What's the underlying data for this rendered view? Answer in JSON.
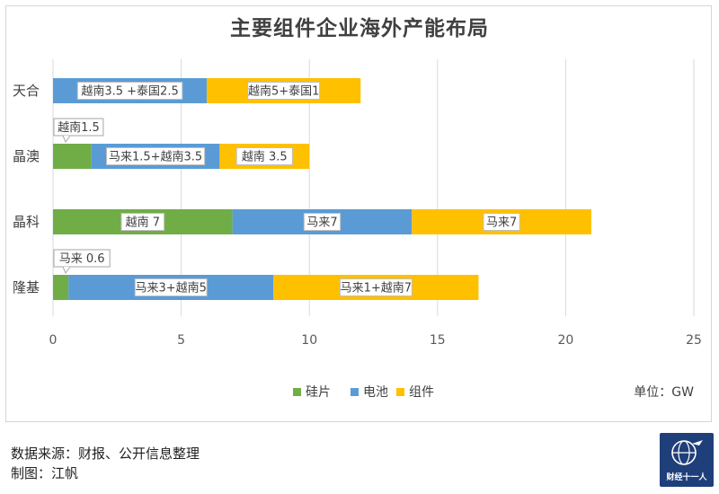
{
  "chart_data": {
    "type": "bar",
    "orientation": "horizontal",
    "stacked": true,
    "title": "主要组件企业海外产能布局",
    "unit_label": "单位：GW",
    "categories": [
      "天合",
      "晶澳",
      "晶科",
      "隆基"
    ],
    "series": [
      {
        "name": "硅片",
        "color": "#70ad47",
        "values": [
          0,
          1.5,
          7,
          0.6
        ]
      },
      {
        "name": "电池",
        "color": "#5b9bd5",
        "values": [
          6,
          5,
          7,
          8
        ]
      },
      {
        "name": "组件",
        "color": "#ffc000",
        "values": [
          6,
          3.5,
          7,
          8
        ]
      }
    ],
    "annotations": [
      {
        "category": "天合",
        "series": "电池",
        "text": "越南3.5 +泰国2.5"
      },
      {
        "category": "天合",
        "series": "组件",
        "text": "越南5+泰国1"
      },
      {
        "category": "晶澳",
        "series": "硅片",
        "text": "越南1.5",
        "callout": true
      },
      {
        "category": "晶澳",
        "series": "电池",
        "text": "马来1.5+越南3.5"
      },
      {
        "category": "晶澳",
        "series": "组件",
        "text": "越南 3.5"
      },
      {
        "category": "晶科",
        "series": "硅片",
        "text": "越南 7"
      },
      {
        "category": "晶科",
        "series": "电池",
        "text": "马来7"
      },
      {
        "category": "晶科",
        "series": "组件",
        "text": "马来7"
      },
      {
        "category": "隆基",
        "series": "硅片",
        "text": "马来 0.6",
        "callout": true
      },
      {
        "category": "隆基",
        "series": "电池",
        "text": "马来3+越南5"
      },
      {
        "category": "隆基",
        "series": "组件",
        "text": "马来1+越南7"
      }
    ],
    "xlim": [
      0,
      25
    ],
    "xticks": [
      0,
      5,
      10,
      15,
      20,
      25
    ],
    "grid": "vertical",
    "legend_position": "bottom"
  },
  "footer": {
    "source": "数据来源：财报、公开信息整理",
    "author": "制图：江帆"
  },
  "logo": {
    "text": "财经十一人"
  }
}
